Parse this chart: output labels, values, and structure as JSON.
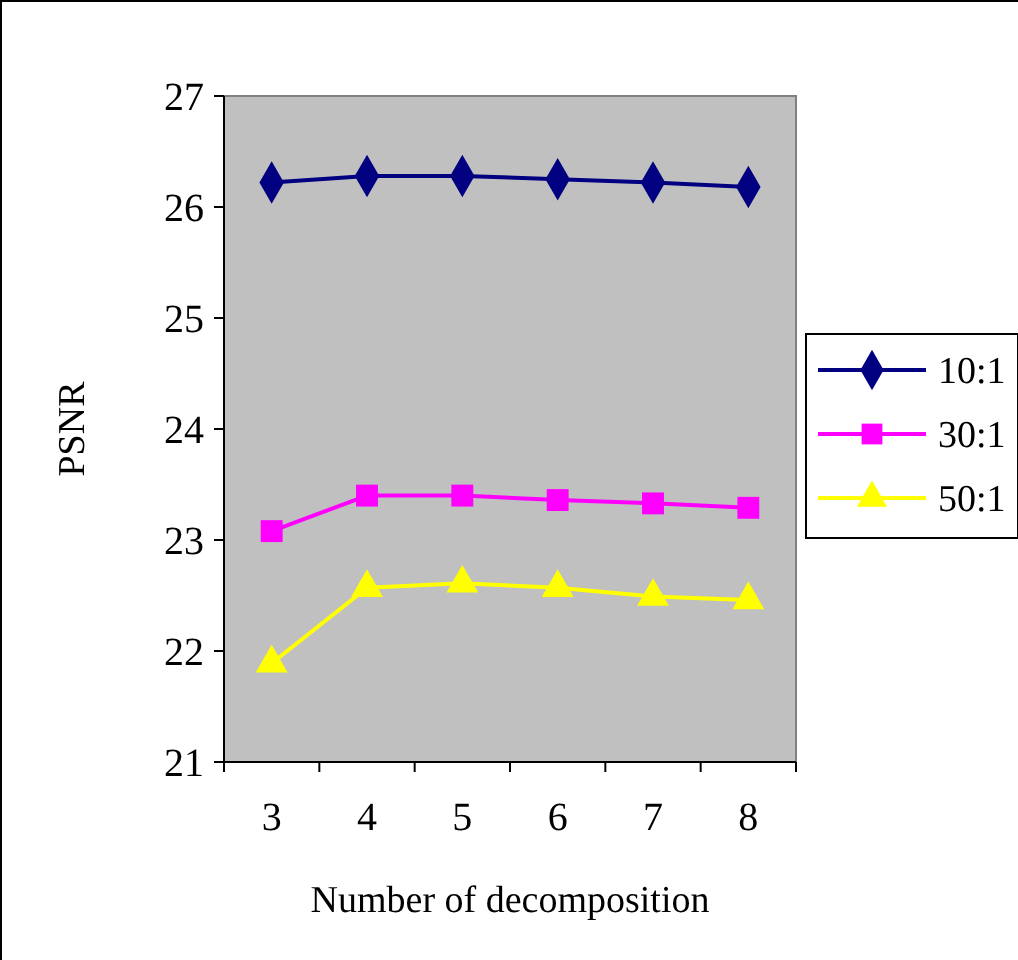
{
  "chart_data": {
    "type": "line",
    "xlabel": "Number of decomposition",
    "ylabel": "PSNR",
    "categories": [
      "3",
      "4",
      "5",
      "6",
      "7",
      "8"
    ],
    "series": [
      {
        "name": "10:1",
        "color": "#000080",
        "marker": "diamond",
        "values": [
          26.22,
          26.28,
          26.28,
          26.25,
          26.22,
          26.18
        ]
      },
      {
        "name": "30:1",
        "color": "#ff00ff",
        "marker": "square",
        "values": [
          23.08,
          23.4,
          23.4,
          23.36,
          23.33,
          23.29
        ]
      },
      {
        "name": "50:1",
        "color": "#ffff00",
        "marker": "triangle",
        "values": [
          21.89,
          22.57,
          22.61,
          22.57,
          22.49,
          22.46
        ]
      }
    ],
    "ylim": [
      21,
      27
    ],
    "yticks": [
      21,
      22,
      23,
      24,
      25,
      26,
      27
    ],
    "grid": false,
    "legend": "right"
  }
}
